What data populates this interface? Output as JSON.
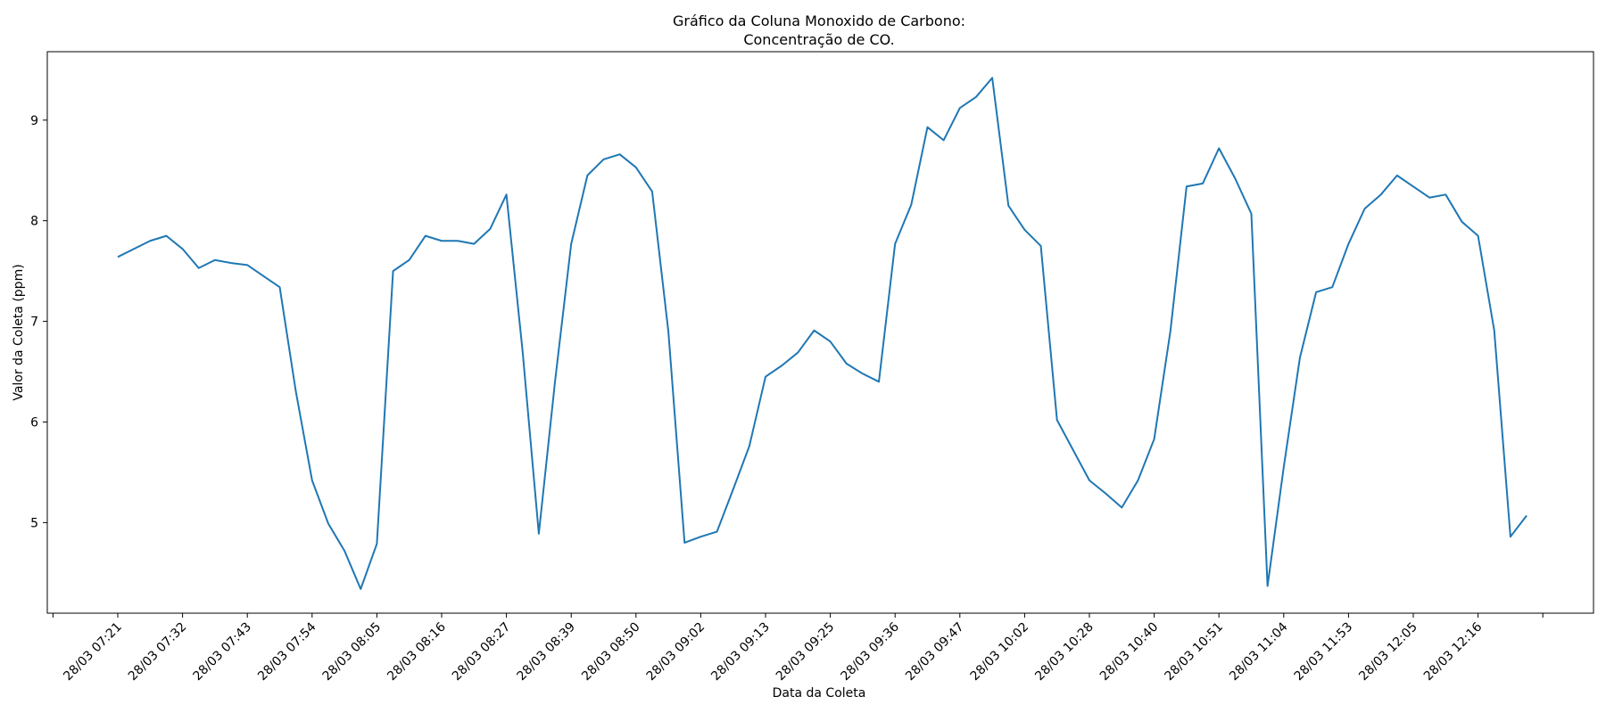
{
  "chart_data": {
    "type": "line",
    "title_line1": "Gráfico da Coluna Monoxido de Carbono:",
    "title_line2": "Concentração de CO.",
    "xlabel": "Data da Coleta",
    "ylabel": "Valor da Coleta (ppm)",
    "ylim": [
      4.1,
      9.68
    ],
    "y_ticks": [
      5,
      6,
      7,
      8,
      9
    ],
    "x_tick_labels": [
      "28/03 07:21",
      "28/03 07:32",
      "28/03 07:43",
      "28/03 07:54",
      "28/03 08:05",
      "28/03 08:16",
      "28/03 08:27",
      "28/03 08:39",
      "28/03 08:50",
      "28/03 09:02",
      "28/03 09:13",
      "28/03 09:25",
      "28/03 09:36",
      "28/03 09:47",
      "28/03 10:02",
      "28/03 10:28",
      "28/03 10:40",
      "28/03 10:51",
      "28/03 11:04",
      "28/03 11:53",
      "28/03 12:05",
      "28/03 12:16"
    ],
    "line_color": "#1f77b4",
    "grid": false,
    "series": [
      {
        "values": [
          7.64,
          7.72,
          7.8,
          7.85,
          7.72,
          7.53,
          7.61,
          7.58,
          7.56,
          7.45,
          7.34,
          6.3,
          5.42,
          4.99,
          4.72,
          4.34,
          4.79,
          7.5,
          7.61,
          7.85,
          7.8,
          7.8,
          7.77,
          7.92,
          8.26,
          6.7,
          4.89,
          6.4,
          7.77,
          8.45,
          8.61,
          8.66,
          8.53,
          8.29,
          6.9,
          4.8,
          4.86,
          4.91,
          5.33,
          5.76,
          6.45,
          6.56,
          6.69,
          6.91,
          6.8,
          6.58,
          6.48,
          6.4,
          7.77,
          8.16,
          8.93,
          8.8,
          9.12,
          9.23,
          9.42,
          8.15,
          7.91,
          7.75,
          6.02,
          5.72,
          5.42,
          5.29,
          5.15,
          5.42,
          5.83,
          6.9,
          8.34,
          8.37,
          8.72,
          8.42,
          8.07,
          4.37,
          5.55,
          6.64,
          7.29,
          7.34,
          7.77,
          8.12,
          8.26,
          8.45,
          8.34,
          8.23,
          8.26,
          7.99,
          7.85,
          6.91,
          4.86,
          5.07
        ]
      }
    ]
  }
}
